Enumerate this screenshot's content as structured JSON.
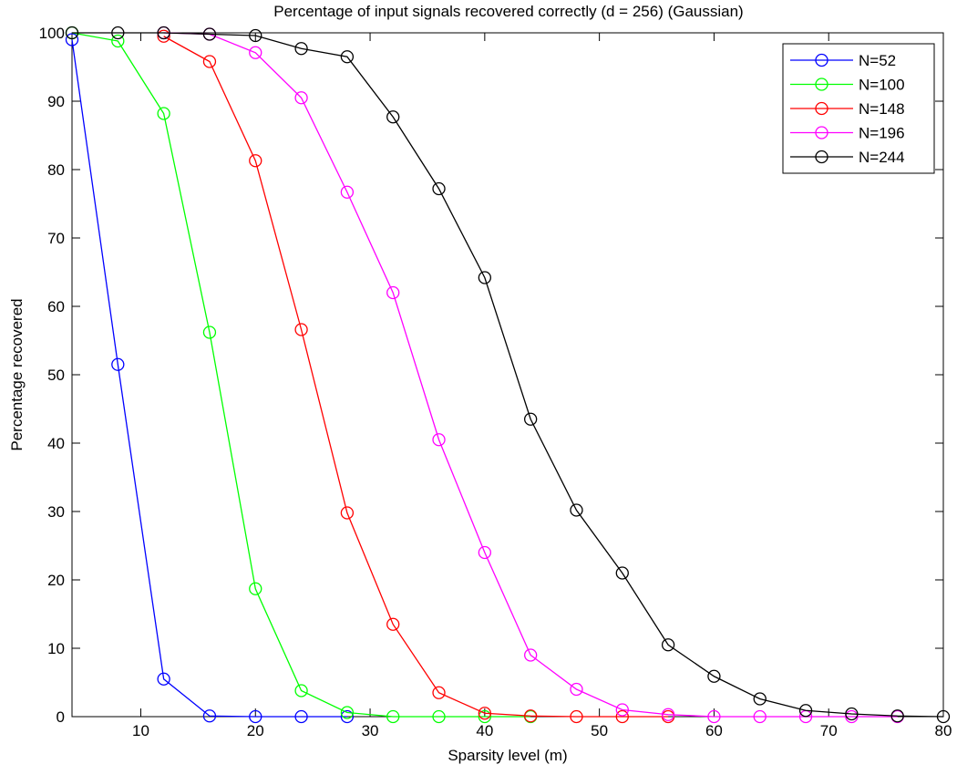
{
  "chart_data": {
    "type": "line",
    "title": "Percentage of input signals recovered correctly (d = 256) (Gaussian)",
    "xlabel": "Sparsity level (m)",
    "ylabel": "Percentage recovered",
    "xlim": [
      4,
      80
    ],
    "ylim": [
      0,
      100
    ],
    "xticks": [
      10,
      20,
      30,
      40,
      50,
      60,
      70,
      80
    ],
    "yticks": [
      0,
      10,
      20,
      30,
      40,
      50,
      60,
      70,
      80,
      90,
      100
    ],
    "grid": false,
    "legend_position": "top-right",
    "marker": "circle",
    "series": [
      {
        "name": "N=52",
        "color": "#0000ff",
        "x": [
          4,
          8,
          12,
          16,
          20,
          24,
          28
        ],
        "y": [
          99,
          51.5,
          5.5,
          0.1,
          0,
          0,
          0
        ]
      },
      {
        "name": "N=100",
        "color": "#00ff00",
        "x": [
          4,
          8,
          12,
          16,
          20,
          24,
          28,
          32,
          36,
          40,
          44
        ],
        "y": [
          100,
          98.8,
          88.2,
          56.2,
          18.7,
          3.8,
          0.6,
          0,
          0,
          0,
          0
        ]
      },
      {
        "name": "N=148",
        "color": "#ff0000",
        "x": [
          12,
          16,
          20,
          24,
          28,
          32,
          36,
          40,
          44,
          48,
          52,
          56
        ],
        "y": [
          99.5,
          95.8,
          81.3,
          56.6,
          29.8,
          13.5,
          3.5,
          0.5,
          0.1,
          0,
          0,
          0
        ]
      },
      {
        "name": "N=196",
        "color": "#ff00ff",
        "x": [
          12,
          16,
          20,
          24,
          28,
          32,
          36,
          40,
          44,
          48,
          52,
          56,
          60,
          64,
          68,
          72,
          76
        ],
        "y": [
          100,
          99.8,
          97.1,
          90.5,
          76.7,
          62,
          40.5,
          24,
          9,
          4,
          1,
          0.3,
          0,
          0,
          0,
          0,
          0
        ]
      },
      {
        "name": "N=244",
        "color": "#000000",
        "x": [
          4,
          8,
          12,
          16,
          20,
          24,
          28,
          32,
          36,
          40,
          44,
          48,
          52,
          56,
          60,
          64,
          68,
          72,
          76,
          80
        ],
        "y": [
          100,
          100,
          100,
          99.8,
          99.6,
          97.7,
          96.5,
          87.7,
          77.2,
          64.2,
          43.5,
          30.2,
          21,
          10.5,
          5.9,
          2.6,
          0.9,
          0.4,
          0.1,
          0
        ]
      }
    ]
  }
}
